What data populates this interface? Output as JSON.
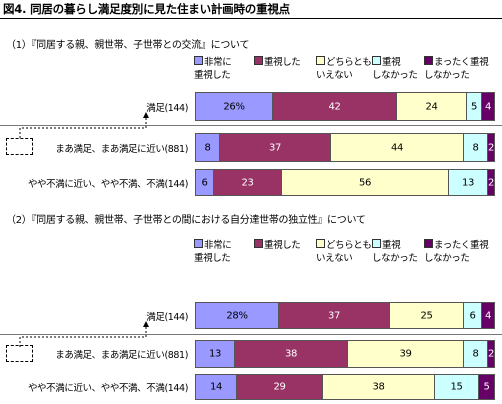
{
  "figure_title": "図4. 同居の暮らし満足度別に見た住まい計画時の重視点",
  "colors": {
    "非常に重視した": "#9999ff",
    "重視した": "#993366",
    "どちらともいえない": "#ffffcc",
    "重視しなかった": "#ccffff",
    "まったく重視しなかった": "#660066"
  },
  "legend": [
    {
      "line1": "非常に",
      "line2": "重視した"
    },
    {
      "line1": "重視した",
      "line2": ""
    },
    {
      "line1": "どちらとも",
      "line2": "いえない"
    },
    {
      "line1": "重視",
      "line2": "しなかった"
    },
    {
      "line1": "まったく重視",
      "line2": "しなかった"
    }
  ],
  "callout_text": "満足",
  "chart_data": [
    {
      "type": "bar",
      "orientation": "horizontal-stacked-percent",
      "title": "（1）『同居する親、親世帯、子世帯との交流』について",
      "categories": [
        "満足(144)",
        "まあ満足、まあ満足に近い(881)",
        "やや不満に近い、やや不満、不満(144)"
      ],
      "series": [
        {
          "name": "非常に重視した",
          "values": [
            26,
            8,
            6
          ]
        },
        {
          "name": "重視した",
          "values": [
            42,
            37,
            23
          ]
        },
        {
          "name": "どちらともいえない",
          "values": [
            24,
            44,
            56
          ]
        },
        {
          "name": "重視しなかった",
          "values": [
            5,
            8,
            13
          ]
        },
        {
          "name": "まったく重視しなかった",
          "values": [
            4,
            2,
            2
          ]
        }
      ],
      "value_labels": [
        [
          "26%",
          "42",
          "24",
          "5",
          "4"
        ],
        [
          "8",
          "37",
          "44",
          "8",
          "2"
        ],
        [
          "6",
          "23",
          "56",
          "13",
          "2"
        ]
      ],
      "xlim": [
        0,
        100
      ]
    },
    {
      "type": "bar",
      "orientation": "horizontal-stacked-percent",
      "title": "（2）『同居する親、親世帯、子世帯との間における自分達世帯の独立性』について",
      "categories": [
        "満足(144)",
        "まあ満足、まあ満足に近い(881)",
        "やや不満に近い、やや不満、不満(144)"
      ],
      "series": [
        {
          "name": "非常に重視した",
          "values": [
            28,
            13,
            14
          ]
        },
        {
          "name": "重視した",
          "values": [
            37,
            38,
            29
          ]
        },
        {
          "name": "どちらともいえない",
          "values": [
            25,
            39,
            38
          ]
        },
        {
          "name": "重視しなかった",
          "values": [
            6,
            8,
            15
          ]
        },
        {
          "name": "まったく重視しなかった",
          "values": [
            4,
            2,
            5
          ]
        }
      ],
      "value_labels": [
        [
          "28%",
          "37",
          "25",
          "6",
          "4"
        ],
        [
          "13",
          "38",
          "39",
          "8",
          "2"
        ],
        [
          "14",
          "29",
          "38",
          "15",
          "5"
        ]
      ],
      "xlim": [
        0,
        100
      ]
    }
  ]
}
